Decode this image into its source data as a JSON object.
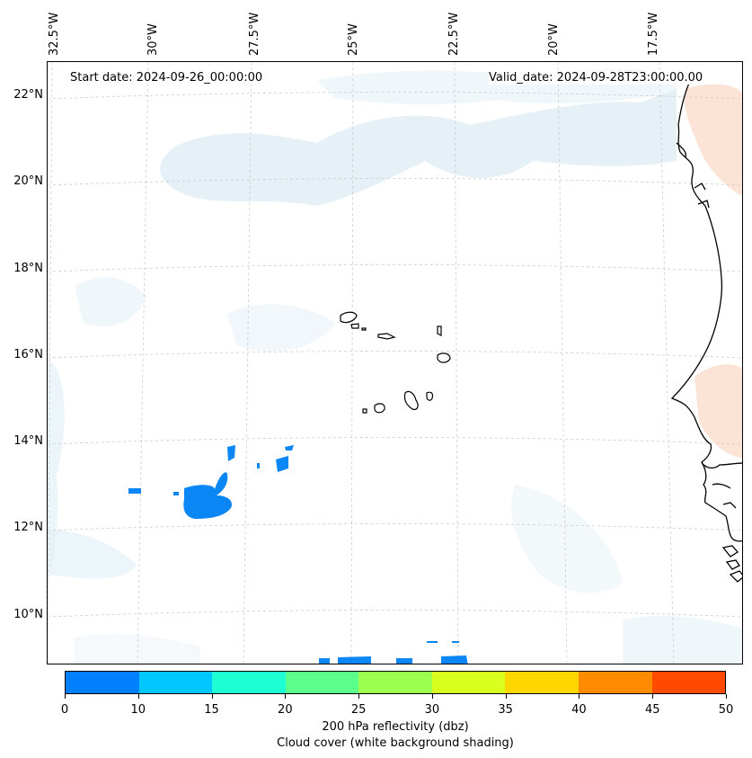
{
  "header": {
    "start_date": "Start date: 2024-09-26_00:00:00",
    "valid_date": "Valid_date: 2024-09-28T23:00:00.00"
  },
  "longitude_labels": [
    "32.5°W",
    "30°W",
    "27.5°W",
    "25°W",
    "22.5°W",
    "20°W",
    "17.5°W"
  ],
  "latitude_labels": [
    "22°N",
    "20°N",
    "18°N",
    "16°N",
    "14°N",
    "12°N",
    "10°N"
  ],
  "colorbar": {
    "ticks": [
      "0",
      "10",
      "15",
      "20",
      "25",
      "30",
      "35",
      "40",
      "45",
      "50"
    ],
    "colors": [
      "#0080ff",
      "#00c8ff",
      "#1effd4",
      "#5cff8c",
      "#9cff50",
      "#d8ff1e",
      "#ffd700",
      "#ff8c00",
      "#ff4a00"
    ],
    "label_line1": "200 hPa reflectivity (dbz)",
    "label_line2": "Cloud cover (white background shading)"
  },
  "colors": {
    "reflectivity_cells": "#0a86f5",
    "cloud_shading": "#dcecf3",
    "warm_shading": "#fbe3d6",
    "coastline": "#000000",
    "gridline": "#cccccc"
  }
}
